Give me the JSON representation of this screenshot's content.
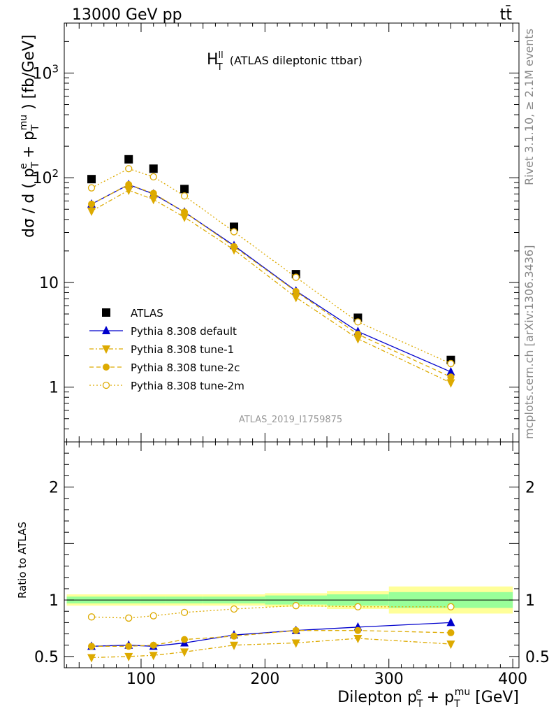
{
  "header": {
    "beam_label": "13000 GeV pp",
    "process_label": "tt̄"
  },
  "side_labels": {
    "rivet": "Rivet 3.1.10, ≥ 2.1M events",
    "mcplots": "mcplots.cern.ch [arXiv:1306.3436]"
  },
  "colors": {
    "data": "#000000",
    "default": "#0000cc",
    "tunes": "#ddaa00",
    "band_inner": "#99ff99",
    "band_outer": "#ffff99"
  },
  "chart_data": [
    {
      "type": "scatter",
      "title_main": "H",
      "title_sup": "ll",
      "title_sub": "T",
      "title_rest": "(ATLAS dileptonic ttbar)",
      "ylabel": "dσ / d ( p_T^e + p_T^mu ) [fb/GeV]",
      "ylabel_parts": {
        "a": "dσ / d ( p",
        "b": "T",
        "c": "e",
        "d": " + p",
        "e": "T",
        "f": "mu",
        "g": " ) [fb/GeV]"
      },
      "yscale": "log",
      "ylim": [
        0.3,
        3000
      ],
      "xlim": [
        38,
        405
      ],
      "ytick_labels": [
        "1",
        "10",
        "10",
        "10"
      ],
      "ytick_exponents": [
        "",
        "",
        "2",
        "3"
      ],
      "analysis_label": "ATLAS_2019_I1759875",
      "legend_position": "center-left",
      "x": [
        60,
        90,
        110,
        135,
        175,
        225,
        275,
        350
      ],
      "series": [
        {
          "name": "ATLAS",
          "values": [
            97,
            150,
            122,
            78,
            34,
            12,
            4.6,
            1.82
          ]
        },
        {
          "name": "Pythia 8.308 default",
          "values": [
            56,
            86,
            70,
            47,
            22.5,
            8.3,
            3.4,
            1.4
          ]
        },
        {
          "name": "Pythia 8.308 tune-1",
          "values": [
            48,
            76,
            62,
            42,
            20.5,
            7.2,
            2.9,
            1.1
          ]
        },
        {
          "name": "Pythia 8.308 tune-2c",
          "values": [
            56,
            86,
            71,
            47,
            22,
            8.2,
            3.2,
            1.25
          ]
        },
        {
          "name": "Pythia 8.308 tune-2m",
          "values": [
            80,
            122,
            102,
            67,
            30.5,
            11.2,
            4.2,
            1.68
          ]
        }
      ]
    },
    {
      "type": "line",
      "ylabel": "Ratio to ATLAS",
      "xlabel": "Dilepton p_T^e + p_T^mu [GeV]",
      "xlabel_parts": {
        "a": "Dilepton p",
        "b": "T",
        "c": "e",
        "d": " + p",
        "e": "T",
        "f": "mu",
        "g": " [GeV]"
      },
      "ylim": [
        0.4,
        2.4
      ],
      "xlim": [
        38,
        405
      ],
      "ytick_labels": [
        "0.5",
        "1",
        "2"
      ],
      "xtick_labels": [
        "100",
        "200",
        "300",
        "400"
      ],
      "x": [
        60,
        90,
        110,
        135,
        175,
        225,
        275,
        350
      ],
      "bins": [
        [
          40,
          80
        ],
        [
          80,
          100
        ],
        [
          100,
          120
        ],
        [
          120,
          150
        ],
        [
          150,
          200
        ],
        [
          200,
          250
        ],
        [
          250,
          300
        ],
        [
          300,
          400
        ]
      ],
      "band_inner": [
        0.03,
        0.03,
        0.03,
        0.03,
        0.03,
        0.04,
        0.05,
        0.07
      ],
      "band_outer": [
        0.05,
        0.05,
        0.05,
        0.05,
        0.05,
        0.06,
        0.08,
        0.12
      ],
      "series": [
        {
          "name": "Pythia 8.308 default",
          "values": [
            0.59,
            0.6,
            0.59,
            0.62,
            0.69,
            0.73,
            0.76,
            0.8
          ]
        },
        {
          "name": "Pythia 8.308 tune-1",
          "values": [
            0.49,
            0.5,
            0.51,
            0.54,
            0.6,
            0.62,
            0.66,
            0.61
          ]
        },
        {
          "name": "Pythia 8.308 tune-2c",
          "values": [
            0.59,
            0.59,
            0.6,
            0.65,
            0.68,
            0.73,
            0.73,
            0.71
          ]
        },
        {
          "name": "Pythia 8.308 tune-2m",
          "values": [
            0.85,
            0.84,
            0.86,
            0.89,
            0.92,
            0.95,
            0.94,
            0.94
          ]
        }
      ]
    }
  ]
}
